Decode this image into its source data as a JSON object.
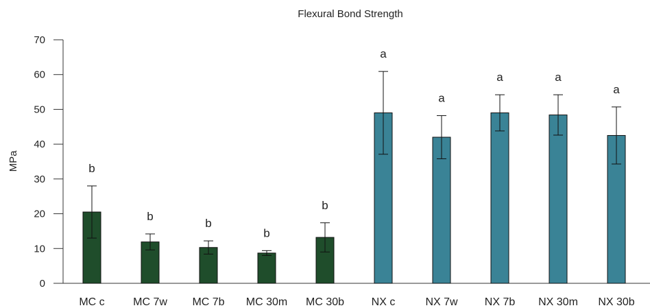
{
  "chart_data": {
    "type": "bar",
    "title": "Flexural Bond Strength",
    "xlabel": "",
    "ylabel": "MPa",
    "ylim": [
      0,
      70
    ],
    "yticks": [
      0,
      10,
      20,
      30,
      40,
      50,
      60,
      70
    ],
    "grid": false,
    "legend": "none",
    "categories": [
      "MC c",
      "MC 7w",
      "MC 7b",
      "MC 30m",
      "MC 30b",
      "NX c",
      "NX 7w",
      "NX 7b",
      "NX 30m",
      "NX 30b"
    ],
    "values": [
      20.5,
      11.9,
      10.3,
      8.7,
      13.2,
      49.0,
      42.0,
      49.0,
      48.4,
      42.5
    ],
    "errors": [
      7.5,
      2.3,
      1.9,
      0.7,
      4.2,
      11.9,
      6.2,
      5.2,
      5.8,
      8.2
    ],
    "significance": [
      "b",
      "b",
      "b",
      "b",
      "b",
      "a",
      "a",
      "a",
      "a",
      "a"
    ],
    "colors": [
      "#1f4d2b",
      "#1f4d2b",
      "#1f4d2b",
      "#1f4d2b",
      "#1f4d2b",
      "#3a8396",
      "#3a8396",
      "#3a8396",
      "#3a8396",
      "#3a8396"
    ]
  }
}
